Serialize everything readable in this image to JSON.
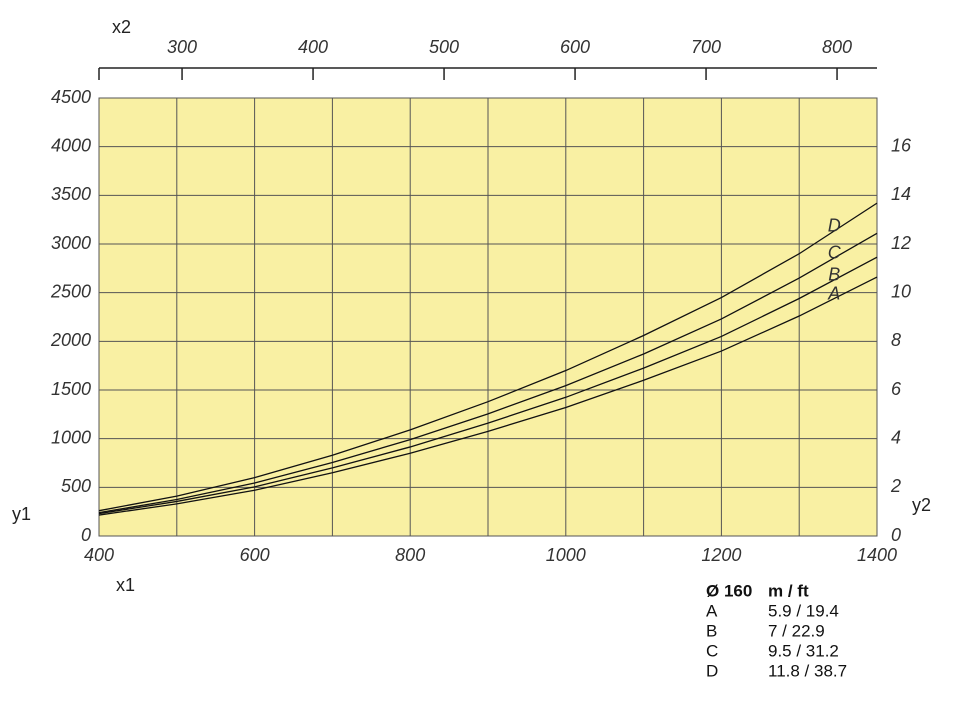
{
  "chart_data": {
    "type": "line",
    "x_label": "x1",
    "x2_label": "x2",
    "y_label": "y1",
    "y2_label": "y2",
    "xlim": [
      400,
      1400
    ],
    "xticks": [
      400,
      600,
      800,
      1000,
      1200,
      1400
    ],
    "x_minor_ticks": [
      500,
      700,
      900,
      1100,
      1300
    ],
    "x2lim": [
      236.6,
      830.5
    ],
    "x2ticks": [
      300,
      400,
      500,
      600,
      700,
      800
    ],
    "ylim": [
      0,
      4500
    ],
    "yticks": [
      0,
      500,
      1000,
      1500,
      2000,
      2500,
      3000,
      3500,
      4000,
      4500
    ],
    "y2lim": [
      0,
      18
    ],
    "y2ticks": [
      0,
      2,
      4,
      6,
      8,
      10,
      12,
      14,
      16
    ],
    "grid": true,
    "background": "#f9f0a3",
    "x": [
      400,
      500,
      600,
      700,
      800,
      900,
      1000,
      1100,
      1200,
      1300,
      1400
    ],
    "series": [
      {
        "name": "A",
        "color": "#111111",
        "values": [
          215,
          330,
          470,
          650,
          850,
          1075,
          1320,
          1600,
          1900,
          2260,
          2660
        ]
      },
      {
        "name": "B",
        "color": "#111111",
        "values": [
          230,
          355,
          505,
          700,
          915,
          1160,
          1425,
          1725,
          2050,
          2440,
          2865
        ]
      },
      {
        "name": "C",
        "color": "#111111",
        "values": [
          240,
          375,
          545,
          755,
          990,
          1255,
          1545,
          1870,
          2230,
          2650,
          3110
        ]
      },
      {
        "name": "D",
        "color": "#111111",
        "values": [
          260,
          410,
          600,
          830,
          1090,
          1380,
          1700,
          2060,
          2450,
          2900,
          3420
        ]
      }
    ]
  },
  "legend_table": {
    "header": [
      "Ø 160",
      "m / ft"
    ],
    "rows": [
      [
        "A",
        "5.9 / 19.4"
      ],
      [
        "B",
        "7 / 22.9"
      ],
      [
        "C",
        "9.5 / 31.2"
      ],
      [
        "D",
        "11.8 / 38.7"
      ]
    ]
  }
}
